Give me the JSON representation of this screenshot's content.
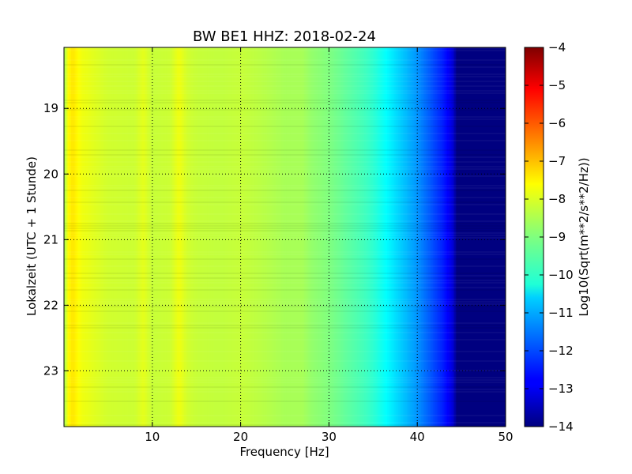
{
  "chart_data": {
    "type": "heatmap",
    "title": "BW BE1 HHZ: 2018-02-24",
    "xlabel": "Frequency [Hz]",
    "ylabel": "Lokalzeit (UTC + 1 Stunde)",
    "xlim": [
      0,
      50
    ],
    "ylim": [
      18.07,
      23.85
    ],
    "y_inverted": true,
    "x_ticks": [
      10,
      20,
      30,
      40,
      50
    ],
    "x_tick_labels": [
      "10",
      "20",
      "30",
      "40",
      "50"
    ],
    "y_ticks": [
      19,
      20,
      21,
      22,
      23
    ],
    "y_tick_labels": [
      "19",
      "20",
      "21",
      "22",
      "23"
    ],
    "grid": true,
    "grid_style": "dotted",
    "colorscale": "jet",
    "colorbar": {
      "label": "Log10(Sqrt(m**2/s**2/Hz))",
      "range": [
        -14,
        -4
      ],
      "ticks": [
        -4,
        -5,
        -6,
        -7,
        -8,
        -9,
        -10,
        -11,
        -12,
        -13,
        -14
      ],
      "tick_labels": [
        "−4",
        "−5",
        "−6",
        "−7",
        "−8",
        "−9",
        "−10",
        "−11",
        "−12",
        "−13",
        "−14"
      ]
    },
    "spectrum_profile": {
      "frequency_hz": [
        0,
        0.5,
        1,
        2,
        3,
        5,
        8,
        9,
        10,
        12,
        13,
        14,
        15,
        18,
        20,
        22,
        25,
        27,
        28,
        30,
        32,
        34,
        35,
        36,
        38,
        40,
        42,
        43,
        44,
        44.5,
        50
      ],
      "log10_amplitude": [
        -8.7,
        -7.7,
        -7.5,
        -7.9,
        -8.0,
        -8.2,
        -8.25,
        -8.0,
        -8.3,
        -8.25,
        -7.9,
        -8.2,
        -8.3,
        -8.35,
        -8.3,
        -8.4,
        -8.6,
        -8.6,
        -8.8,
        -9.0,
        -9.3,
        -9.6,
        -9.8,
        -10.1,
        -10.7,
        -11.3,
        -12.1,
        -12.5,
        -13.1,
        -14.0,
        -14.0
      ]
    }
  }
}
